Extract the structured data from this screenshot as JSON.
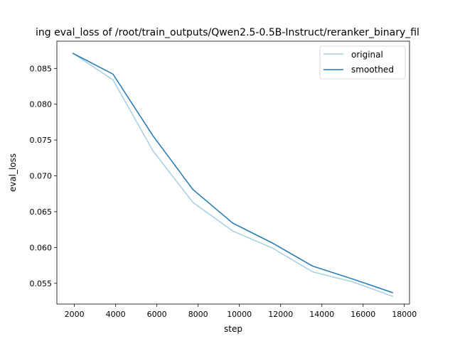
{
  "chart_data": {
    "type": "line",
    "title": "ing eval_loss of /root/train_outputs/Qwen2.5-0.5B-Instruct/reranker_binary_fil",
    "xlabel": "step",
    "ylabel": "eval_loss",
    "xlim": [
      1150,
      18250
    ],
    "ylim": [
      0.0521,
      0.0888
    ],
    "xticks": [
      2000,
      4000,
      6000,
      8000,
      10000,
      12000,
      14000,
      16000,
      18000
    ],
    "xtick_labels": [
      "2000",
      "4000",
      "6000",
      "8000",
      "10000",
      "12000",
      "14000",
      "16000",
      "18000"
    ],
    "yticks": [
      0.055,
      0.06,
      0.065,
      0.07,
      0.075,
      0.08,
      0.085
    ],
    "ytick_labels": [
      "0.055",
      "0.060",
      "0.065",
      "0.070",
      "0.075",
      "0.080",
      "0.085"
    ],
    "grid": false,
    "legend_position": "top-right",
    "x": [
      1936,
      3872,
      5808,
      7744,
      9680,
      11616,
      13552,
      15488,
      17424
    ],
    "series": [
      {
        "name": "original",
        "color": "#a6cee3",
        "values": [
          0.0871,
          0.0834,
          0.0735,
          0.0663,
          0.0623,
          0.0599,
          0.0566,
          0.0552,
          0.0532
        ]
      },
      {
        "name": "smoothed",
        "color": "#1f78b4",
        "values": [
          0.0871,
          0.0842,
          0.0756,
          0.0681,
          0.0634,
          0.0606,
          0.0574,
          0.0556,
          0.0537
        ]
      }
    ]
  }
}
